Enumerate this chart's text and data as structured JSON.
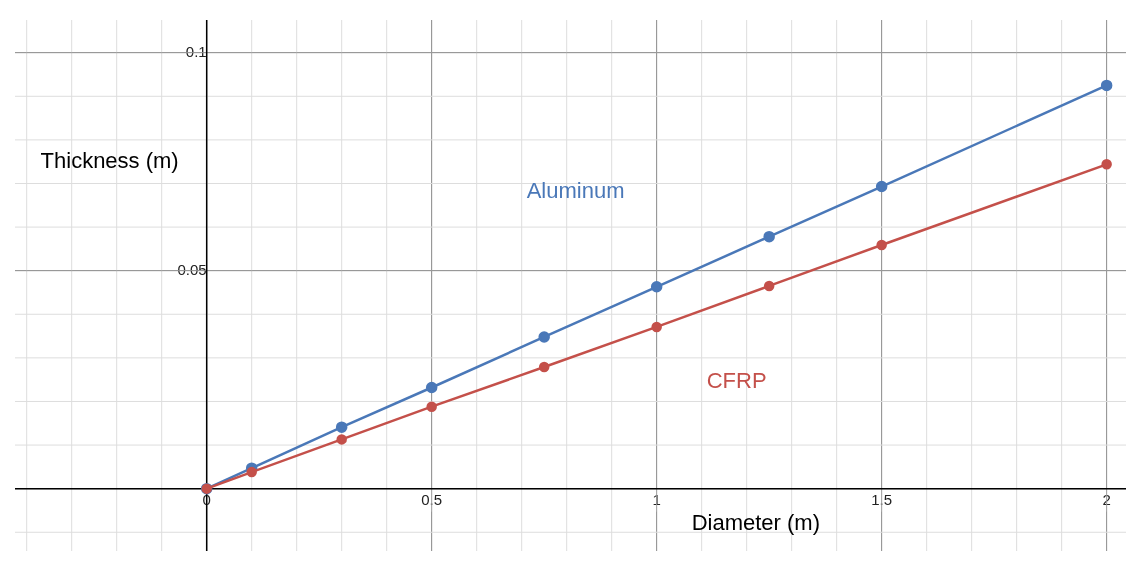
{
  "chart_data": {
    "type": "line",
    "xlabel": "Diameter (m)",
    "ylabel": "Thickness (m)",
    "xlim": [
      -0.426,
      2.043
    ],
    "ylim": [
      -0.0143,
      0.1075
    ],
    "xticks": [
      0,
      0.5,
      1,
      1.5,
      2
    ],
    "yticks": [
      0.05,
      0.1
    ],
    "grid": true,
    "marker": "circle",
    "line_style": "solid",
    "legend": false,
    "series": [
      {
        "name": "Aluminum",
        "color": "#4a78b8",
        "x": [
          0,
          0.1,
          0.3,
          0.5,
          0.75,
          1,
          1.25,
          1.5,
          2
        ],
        "values": [
          0,
          0.0047,
          0.0141,
          0.0232,
          0.0348,
          0.0463,
          0.0578,
          0.0693,
          0.0925
        ]
      },
      {
        "name": "CFRP",
        "color": "#c4504a",
        "x": [
          0,
          0.1,
          0.3,
          0.5,
          0.75,
          1,
          1.25,
          1.5,
          2
        ],
        "values": [
          0,
          0.0038,
          0.0113,
          0.0188,
          0.0279,
          0.0371,
          0.0465,
          0.0559,
          0.0744
        ]
      }
    ]
  }
}
